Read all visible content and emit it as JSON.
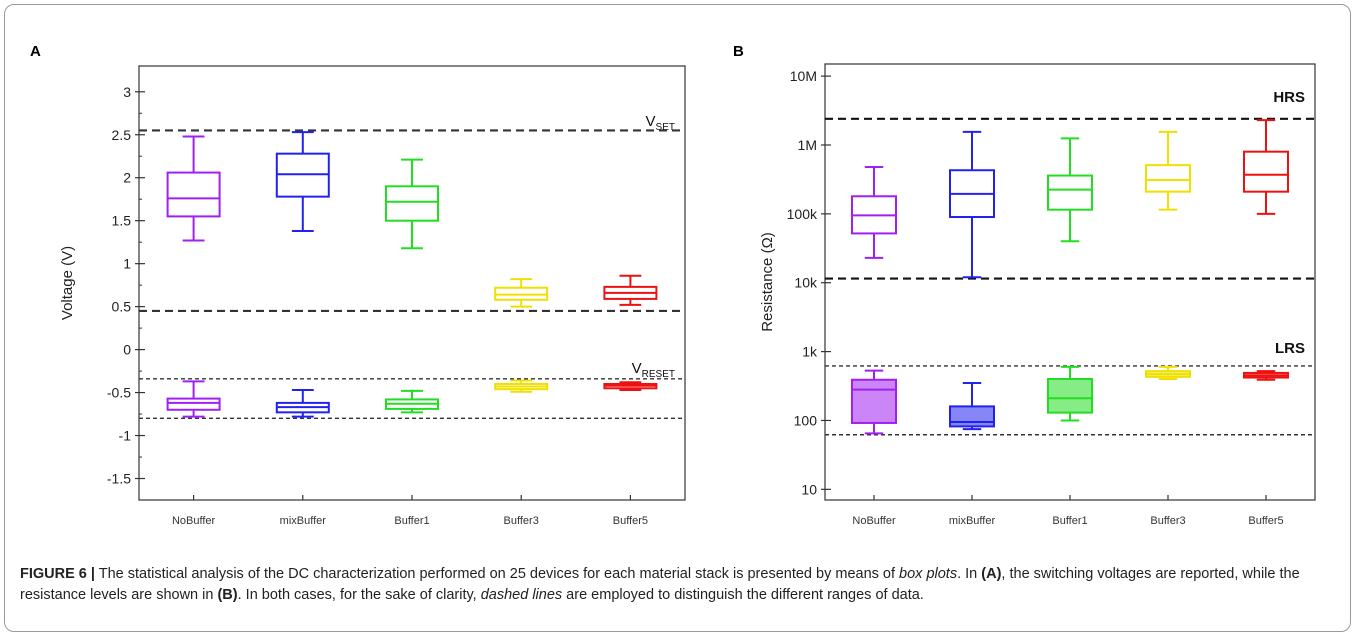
{
  "chart_data": [
    {
      "panel": "A",
      "type": "box",
      "ylabel": "Voltage (V)",
      "yscale": "linear",
      "ylim": [
        -1.75,
        3.3
      ],
      "yticks": [
        -1.5,
        -1,
        -0.5,
        0,
        0.5,
        1,
        1.5,
        2,
        2.5,
        3
      ],
      "ytick_labels": [
        "-1.5",
        "-1",
        "-0.5",
        "0",
        "0.5",
        "1",
        "1.5",
        "2",
        "2.5",
        "3"
      ],
      "categories": [
        "NoBuffer",
        "mixBuffer",
        "Buffer1",
        "Buffer3",
        "Buffer5"
      ],
      "colors": [
        "#a020f0",
        "#2222ee",
        "#22dd22",
        "#f0e000",
        "#ee1111"
      ],
      "groups": [
        {
          "name": "SET",
          "boxes": [
            {
              "min": 1.27,
              "q1": 1.55,
              "median": 1.76,
              "q3": 2.06,
              "max": 2.48
            },
            {
              "min": 1.38,
              "q1": 1.78,
              "median": 2.04,
              "q3": 2.28,
              "max": 2.53
            },
            {
              "min": 1.18,
              "q1": 1.5,
              "median": 1.72,
              "q3": 1.9,
              "max": 2.21
            },
            {
              "min": 0.5,
              "q1": 0.58,
              "median": 0.64,
              "q3": 0.72,
              "max": 0.82
            },
            {
              "min": 0.52,
              "q1": 0.59,
              "median": 0.66,
              "q3": 0.73,
              "max": 0.86
            }
          ]
        },
        {
          "name": "RESET",
          "boxes": [
            {
              "min": -0.78,
              "q1": -0.7,
              "median": -0.62,
              "q3": -0.57,
              "max": -0.37
            },
            {
              "min": -0.78,
              "q1": -0.73,
              "median": -0.67,
              "q3": -0.62,
              "max": -0.47
            },
            {
              "min": -0.73,
              "q1": -0.69,
              "median": -0.63,
              "q3": -0.58,
              "max": -0.48
            },
            {
              "min": -0.49,
              "q1": -0.46,
              "median": -0.43,
              "q3": -0.4,
              "max": -0.36
            },
            {
              "min": -0.47,
              "q1": -0.45,
              "median": -0.42,
              "q3": -0.4,
              "max": -0.38
            }
          ]
        }
      ],
      "reference_lines": [
        {
          "y": 2.55,
          "style": "dashed-bold",
          "color": "#333333"
        },
        {
          "y": 0.45,
          "style": "dashed-bold",
          "color": "#333333"
        },
        {
          "y": -0.34,
          "style": "dashed-thin",
          "color": "#333333"
        },
        {
          "y": -0.8,
          "style": "dashed-thin",
          "color": "#333333"
        }
      ],
      "annotations": [
        {
          "text": "V",
          "sub": "SET",
          "y": 2.6
        },
        {
          "text": "V",
          "sub": "RESET",
          "y": -0.27
        }
      ],
      "grid": false
    },
    {
      "panel": "B",
      "type": "box",
      "ylabel": "Resistance (Ω)",
      "yscale": "log",
      "ylim": [
        7,
        15000000
      ],
      "yticks": [
        10,
        100,
        1000,
        10000,
        100000,
        1000000,
        10000000
      ],
      "ytick_labels": [
        "10",
        "100",
        "1k",
        "10k",
        "100k",
        "1M",
        "10M"
      ],
      "categories": [
        "NoBuffer",
        "mixBuffer",
        "Buffer1",
        "Buffer3",
        "Buffer5"
      ],
      "colors": [
        "#a020f0",
        "#2222ee",
        "#22dd22",
        "#f0e000",
        "#ee1111"
      ],
      "groups": [
        {
          "name": "HRS",
          "filled": false,
          "boxes": [
            {
              "min": 23000,
              "q1": 52000,
              "median": 95000,
              "q3": 180000,
              "max": 480000
            },
            {
              "min": 12000,
              "q1": 90000,
              "median": 195000,
              "q3": 430000,
              "max": 1550000
            },
            {
              "min": 40000,
              "q1": 115000,
              "median": 225000,
              "q3": 360000,
              "max": 1250000
            },
            {
              "min": 115000,
              "q1": 210000,
              "median": 310000,
              "q3": 510000,
              "max": 1550000
            },
            {
              "min": 100000,
              "q1": 210000,
              "median": 370000,
              "q3": 800000,
              "max": 2300000
            }
          ]
        },
        {
          "name": "LRS",
          "filled": true,
          "boxes": [
            {
              "min": 65,
              "q1": 92,
              "median": 280,
              "q3": 390,
              "max": 530
            },
            {
              "min": 75,
              "q1": 82,
              "median": 95,
              "q3": 160,
              "max": 350
            },
            {
              "min": 100,
              "q1": 130,
              "median": 210,
              "q3": 400,
              "max": 600
            },
            {
              "min": 400,
              "q1": 430,
              "median": 470,
              "q3": 520,
              "max": 600
            },
            {
              "min": 390,
              "q1": 420,
              "median": 450,
              "q3": 490,
              "max": 520
            }
          ]
        }
      ],
      "reference_lines": [
        {
          "y": 2400000,
          "style": "dashed-bold",
          "color": "#111111"
        },
        {
          "y": 11500,
          "style": "dashed-bold",
          "color": "#111111"
        },
        {
          "y": 620,
          "style": "dashed-thin",
          "color": "#333333"
        },
        {
          "y": 62,
          "style": "dashed-thin",
          "color": "#333333"
        }
      ],
      "annotations": [
        {
          "text": "HRS",
          "y": 4200000
        },
        {
          "text": "LRS",
          "y": 950
        }
      ],
      "grid": false
    }
  ],
  "caption": {
    "figure_label": "FIGURE 6 |",
    "t1": " The statistical analysis of the DC characterization performed on 25 devices for each material stack is presented by means of ",
    "t2": "box plots",
    "t3": ". In ",
    "t4": "(A)",
    "t5": ", the switching voltages are reported, while the resistance levels are shown in ",
    "t6": "(B)",
    "t7": ". In both cases, for the sake of clarity, ",
    "t8": "dashed lines",
    "t9": " are employed to distinguish the different ranges of data."
  }
}
